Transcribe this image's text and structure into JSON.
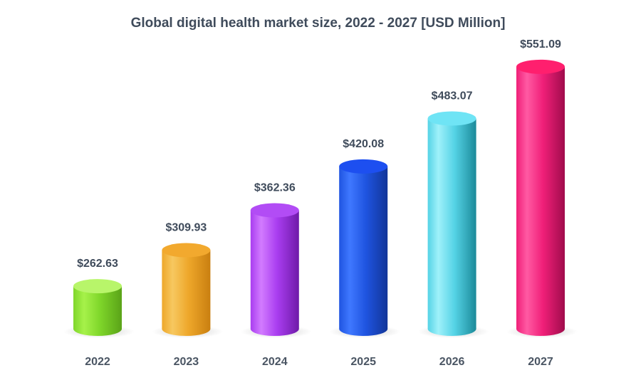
{
  "chart_data": {
    "type": "bar",
    "title": "Global digital health market size, 2022 - 2027 [USD Million]",
    "categories": [
      "2022",
      "2023",
      "2024",
      "2025",
      "2026",
      "2027"
    ],
    "values": [
      262.63,
      309.93,
      362.36,
      420.08,
      483.07,
      551.09
    ],
    "data_labels": [
      "$262.63",
      "$309.93",
      "$362.36",
      "$420.08",
      "$483.07",
      "$551.09"
    ],
    "xlabel": "",
    "ylabel": "",
    "grid": false,
    "legend": "none",
    "bar_style": "3d-cylinder",
    "colors": [
      {
        "light": "#a6f24a",
        "mid": "#7fd62a",
        "dark": "#5aa318",
        "top": "#b8f56a"
      },
      {
        "light": "#f7c860",
        "mid": "#eea72a",
        "dark": "#c97f10",
        "top": "#f2a92e"
      },
      {
        "light": "#d27bff",
        "mid": "#a93df0",
        "dark": "#6f1aa8",
        "top": "#b24cf5"
      },
      {
        "light": "#3f78ff",
        "mid": "#1f54e0",
        "dark": "#123599",
        "top": "#1d4ff0"
      },
      {
        "light": "#9ff1fa",
        "mid": "#55d3e6",
        "dark": "#1b8a99",
        "top": "#6fe4f5"
      },
      {
        "light": "#ff5aa3",
        "mid": "#f01f78",
        "dark": "#a00c4c",
        "top": "#ff1f6e"
      }
    ]
  }
}
